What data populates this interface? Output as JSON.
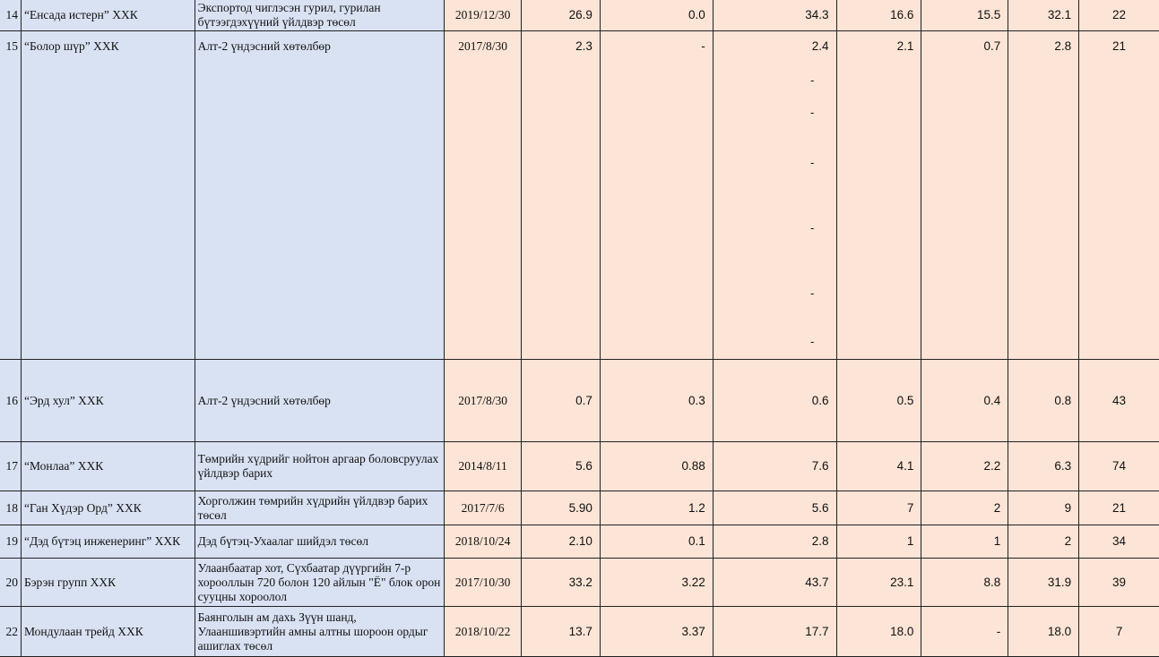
{
  "rows": [
    {
      "no": "14",
      "company": "“Енсада истерн” ХХК",
      "project": "Экспортод чиглэсэн гурил, гурилан бүтээгдэхүүний үйлдвэр төсөл",
      "date": "2019/12/30",
      "v1": "26.9",
      "v2": "0.0",
      "v3": "34.3",
      "v4": "16.6",
      "v5": "15.5",
      "v6": "32.1",
      "v7": "22"
    },
    {
      "no": "15",
      "company": "“Болор шүр” ХХК",
      "project": "Алт-2 үндэсний хөтөлбөр",
      "date": "2017/8/30",
      "v1": "2.3",
      "v2": "-",
      "v3": "2.4",
      "v4": "2.1",
      "v5": "0.7",
      "v6": "2.8",
      "v7": "21"
    },
    {
      "no": "16",
      "company": "“Эрд хул” ХХК",
      "project": "Алт-2 үндэсний хөтөлбөр",
      "date": "2017/8/30",
      "v1": "0.7",
      "v2": "0.3",
      "v3": "0.6",
      "v4": "0.5",
      "v5": "0.4",
      "v6": "0.8",
      "v7": "43"
    },
    {
      "no": "17",
      "company": "“Монлаа” ХХК",
      "project": "Төмрийн хүдрийг нойтон аргаар боловсруулах үйлдвэр барих",
      "date": "2014/8/11",
      "v1": "5.6",
      "v2": "0.88",
      "v3": "7.6",
      "v4": "4.1",
      "v5": "2.2",
      "v6": "6.3",
      "v7": "74"
    },
    {
      "no": "18",
      "company": "“Ган Хүдэр Орд” ХХК",
      "project": "Хорголжин төмрийн хүдрийн үйлдвэр барих төсөл",
      "date": "2017/7/6",
      "v1": "5.90",
      "v2": "1.2",
      "v3": "5.6",
      "v4": "7",
      "v5": "2",
      "v6": "9",
      "v7": "21"
    },
    {
      "no": "19",
      "company": "“Дэд бүтэц инженеринг” ХХК",
      "project": "Дэд бүтэц-Ухаалаг шийдэл төсөл",
      "date": "2018/10/24",
      "v1": "2.10",
      "v2": "0.1",
      "v3": "2.8",
      "v4": "1",
      "v5": "1",
      "v6": "2",
      "v7": "34"
    },
    {
      "no": "20",
      "company": "Бэрэн групп ХХК",
      "project": "Улаанбаатар хот, Сүхбаатар дүүргийн 7-р хорооллын 720 болон 120 айлын \"Ё\" блок орон сууцны хороолол",
      "date": "2017/10/30",
      "v1": "33.2",
      "v2": "3.22",
      "v3": "43.7",
      "v4": "23.1",
      "v5": "8.8",
      "v6": "31.9",
      "v7": "39"
    },
    {
      "no": "22",
      "company": "Мондулаан трейд ХХК",
      "project": "Баянголын ам дахь Зүүн шанд, Улааншивэртийн амны алтны шороон ордыг ашиглах төсөл",
      "date": "2018/10/22",
      "v1": "13.7",
      "v2": "3.37",
      "v3": "17.7",
      "v4": "18.0",
      "v5": "-",
      "v6": "18.0",
      "v7": "7"
    }
  ],
  "stray_marks": [
    "-",
    "-",
    "-",
    "-",
    "-",
    "-"
  ]
}
